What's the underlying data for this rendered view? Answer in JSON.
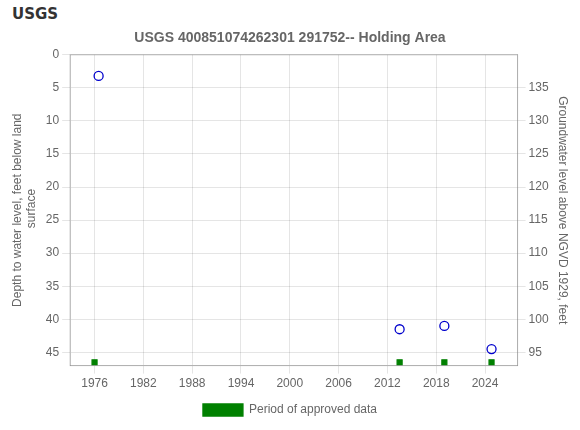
{
  "chart_data": {
    "type": "scatter",
    "title": "USGS 400851074262301 291752-- Holding Area",
    "annotations": [
      "USGS"
    ],
    "y_label": "Depth to water level, feet below land\n surface",
    "y2_label": "Groundwater level above NGVD 1929, feet",
    "xlim": [
      1973,
      2028
    ],
    "xticks": [
      1976,
      1982,
      1988,
      1994,
      2000,
      2006,
      2012,
      2018,
      2024
    ],
    "ylim": [
      47,
      0
    ],
    "yticks": [
      0,
      5,
      10,
      15,
      20,
      25,
      30,
      35,
      40,
      45
    ],
    "y2lim": [
      93,
      140
    ],
    "y2ticks": [
      95,
      100,
      105,
      110,
      115,
      120,
      125,
      130,
      135
    ],
    "grid": true,
    "legend": "bottom",
    "series": [
      {
        "marker": "circle",
        "color": "#0000cc",
        "x": [
          1976.5,
          2013.5,
          2019.0,
          2024.8
        ],
        "values": [
          3.2,
          41.5,
          41.0,
          44.5
        ]
      },
      {
        "name": "Period of approved data",
        "marker": "square",
        "color": "#008000",
        "x": [
          1976.0,
          2013.5,
          2019.0,
          2024.8
        ],
        "values": [
          46.5,
          46.5,
          46.5,
          46.5
        ]
      }
    ]
  }
}
